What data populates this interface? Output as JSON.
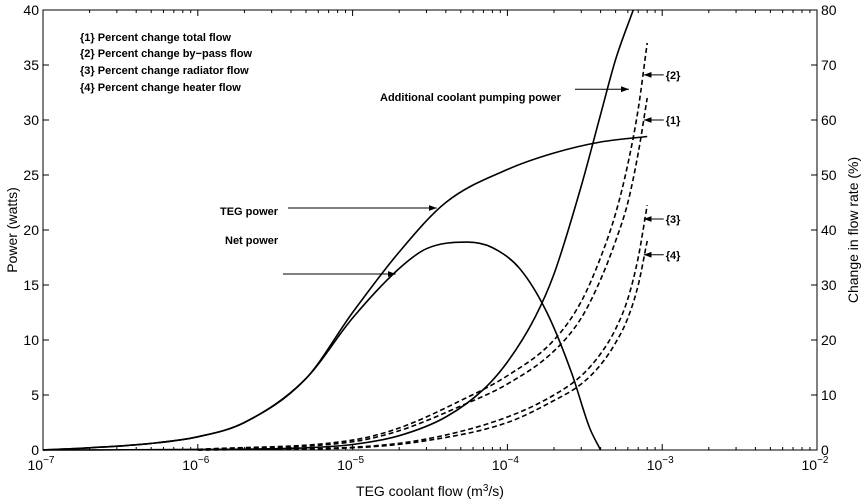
{
  "chart_data": {
    "type": "line",
    "xlabel": "TEG coolant flow (m³/s)",
    "xscale": "log",
    "xlim": [
      1e-07,
      0.01
    ],
    "xticks": [
      {
        "value": 1e-07,
        "label": "10"
      },
      {
        "value": 1e-06,
        "label": "10"
      },
      {
        "value": 1e-05,
        "label": "10"
      },
      {
        "value": 0.0001,
        "label": "10"
      },
      {
        "value": 0.001,
        "label": "10"
      },
      {
        "value": 0.01,
        "label": "10"
      }
    ],
    "xtick_exponents": [
      "−7",
      "−6",
      "−5",
      "−4",
      "−3",
      "−2"
    ],
    "ylabel_left": "Power (watts)",
    "ylim_left": [
      0,
      40
    ],
    "yticks_left": [
      "0",
      "5",
      "10",
      "15",
      "20",
      "25",
      "30",
      "35",
      "40"
    ],
    "ylabel_right": "Change in flow rate (%)",
    "ylim_right": [
      0,
      80
    ],
    "yticks_right": [
      "0",
      "10",
      "20",
      "30",
      "40",
      "50",
      "60",
      "70",
      "80"
    ],
    "grid": false,
    "legend_placement": "top-left",
    "legend_entries": [
      "{1} Percent change total flow",
      "{2} Percent change by−pass flow",
      "{3} Percent change radiator flow",
      "{4} Percent change heater flow"
    ],
    "series": [
      {
        "name": "TEG power",
        "axis": "left",
        "style": "solid",
        "x": [
          1e-07,
          2e-07,
          5e-07,
          1e-06,
          2e-06,
          5e-06,
          1e-05,
          2e-05,
          4e-05,
          0.0001,
          0.0002,
          0.0004,
          0.0008
        ],
        "y": [
          0,
          0.2,
          0.6,
          1.2,
          2.5,
          6.5,
          12.5,
          18.0,
          22.5,
          25.5,
          27.0,
          28.0,
          28.5
        ]
      },
      {
        "name": "Net power",
        "axis": "left",
        "style": "solid",
        "x": [
          1e-07,
          2e-07,
          5e-07,
          1e-06,
          2e-06,
          5e-06,
          1e-05,
          2e-05,
          3e-05,
          5.5e-05,
          8e-05,
          0.00012,
          0.00018,
          0.00026,
          0.00034,
          0.0004
        ],
        "y": [
          0,
          0.2,
          0.6,
          1.2,
          2.5,
          6.5,
          12.0,
          16.5,
          18.3,
          18.9,
          18.4,
          16.5,
          12.5,
          7.0,
          2.0,
          0
        ]
      },
      {
        "name": "Additional coolant pumping power",
        "axis": "left",
        "style": "solid",
        "x": [
          1e-07,
          1e-06,
          5e-06,
          1e-05,
          2e-05,
          4e-05,
          7e-05,
          0.0001,
          0.00015,
          0.0002,
          0.0003,
          0.0004,
          0.0005,
          0.00065
        ],
        "y": [
          0,
          0.05,
          0.2,
          0.5,
          1.3,
          3.0,
          5.5,
          8.0,
          12.0,
          16.0,
          24.0,
          30.5,
          35.5,
          40.0
        ]
      },
      {
        "name": "{1}",
        "axis": "right",
        "style": "dashed",
        "x": [
          1e-06,
          1e-05,
          2e-05,
          5e-05,
          0.0001,
          0.0002,
          0.0003,
          0.0004,
          0.0005,
          0.0006,
          0.0007,
          0.0008
        ],
        "y": [
          0.1,
          1.5,
          3.5,
          8.0,
          12.0,
          18.0,
          24.0,
          31.0,
          38.0,
          45.0,
          54.0,
          64.0
        ]
      },
      {
        "name": "{2}",
        "axis": "right",
        "style": "dashed",
        "x": [
          1e-06,
          1e-05,
          2e-05,
          5e-05,
          0.0001,
          0.0002,
          0.0003,
          0.0004,
          0.0005,
          0.0006,
          0.0007,
          0.0008
        ],
        "y": [
          0.1,
          1.8,
          4.0,
          9.0,
          13.5,
          20.0,
          27.0,
          35.0,
          43.0,
          52.0,
          62.0,
          74.0
        ]
      },
      {
        "name": "{3}",
        "axis": "right",
        "style": "dashed",
        "x": [
          1e-06,
          1e-05,
          3e-05,
          0.0001,
          0.0002,
          0.0003,
          0.0004,
          0.0005,
          0.0006,
          0.0007,
          0.0008
        ],
        "y": [
          0,
          0.5,
          2.0,
          6.0,
          10.0,
          13.5,
          17.5,
          22.0,
          27.5,
          35.0,
          44.5
        ]
      },
      {
        "name": "{4}",
        "axis": "right",
        "style": "dashed",
        "x": [
          1e-06,
          1e-05,
          3e-05,
          0.0001,
          0.0002,
          0.0003,
          0.0004,
          0.0005,
          0.0006,
          0.0007,
          0.0008
        ],
        "y": [
          0,
          0.4,
          1.7,
          5.0,
          9.0,
          12.0,
          15.5,
          19.5,
          24.0,
          30.0,
          38.0
        ]
      }
    ],
    "annotations": [
      {
        "text": "Additional coolant pumping power",
        "target": "Additional coolant pumping power",
        "axis": "left",
        "x": 0.00061,
        "y": 32.8
      },
      {
        "text": "TEG power",
        "target": "TEG power",
        "axis": "left",
        "x": 3.5e-05,
        "y": 22.0
      },
      {
        "text": "Net power",
        "target": "Net power",
        "axis": "left",
        "x": 1.9e-05,
        "y": 16.0
      },
      {
        "text": "{2}",
        "target": "{2}",
        "axis": "right",
        "x": 0.00076,
        "y": 68.2
      },
      {
        "text": "{1}",
        "target": "{1}",
        "axis": "right",
        "x": 0.00076,
        "y": 60.0
      },
      {
        "text": "{3}",
        "target": "{3}",
        "axis": "right",
        "x": 0.00076,
        "y": 42.0
      },
      {
        "text": "{4}",
        "target": "{4}",
        "axis": "right",
        "x": 0.00076,
        "y": 35.5
      }
    ]
  }
}
